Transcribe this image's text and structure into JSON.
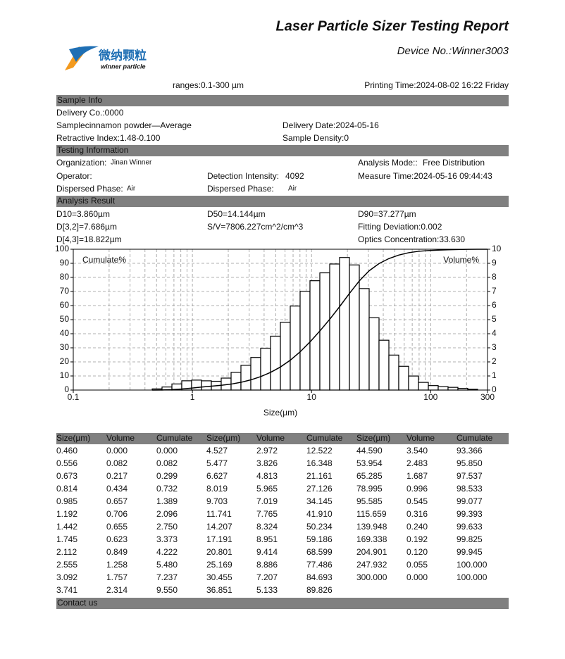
{
  "header": {
    "title": "Laser Particle Sizer Testing Report",
    "device": "Device No.:Winner3003",
    "logo_cn": "微纳颗粒",
    "logo_en": "winner particle",
    "ranges": "ranges:0.1-300 µm",
    "printing_time": "Printing Time:2024-08-02 16:22 Friday"
  },
  "sample_info": {
    "heading": "Sample Info",
    "delivery_co": "Delivery Co.:0000",
    "sample": "Samplecinnamon powder—Average",
    "delivery_date": "Delivery Date:2024-05-16",
    "retractive_index": "Retractive Index:1.48-0.100",
    "sample_density": "Sample Density:0"
  },
  "testing_info": {
    "heading": "Testing Information",
    "organization_label": "Organization:",
    "organization": "Jinan Winner",
    "analysis_mode_label": "Analysis Mode::",
    "analysis_mode": "Free Distribution",
    "operator_label": "Operator:",
    "detection_intensity_label": "Detection Intensity:",
    "detection_intensity": "4092",
    "measure_time": "Measure Time:2024-05-16 09:44:43",
    "dispersed_phase_label": "Dispersed Phase:",
    "dispersed_phase": "Air",
    "dispersed_phase_2_label": "Dispersed Phase:",
    "dispersed_phase_2": "Air"
  },
  "analysis_result": {
    "heading": "Analysis Result",
    "d10": "D10=3.860µm",
    "d50": "D50=14.144µm",
    "d90": "D90=37.277µm",
    "d32": "D[3,2]=7.686µm",
    "sv": "S/V=7806.227cm^2/cm^3",
    "fitting_deviation": "Fitting Deviation:0.002",
    "d43": "D[4,3]=18.822µm",
    "optics_concentration": "Optics Concentration:33.630"
  },
  "chart_data": {
    "type": "histogram",
    "x_label": "Size(µm)",
    "y_label": "Cumulate%",
    "y2_label": "Volume%",
    "x_log": true,
    "xlim": [
      0.1,
      300
    ],
    "xticks": [
      0.1,
      1,
      10,
      100,
      300
    ],
    "x_minor_ticks": [
      0.2,
      0.3,
      0.4,
      0.5,
      0.6,
      0.7,
      0.8,
      0.9,
      2,
      3,
      4,
      5,
      6,
      7,
      8,
      9,
      20,
      30,
      40,
      50,
      60,
      70,
      80,
      90,
      200
    ],
    "ylim": [
      0,
      100
    ],
    "yticks": [
      0,
      10,
      20,
      30,
      40,
      50,
      60,
      70,
      80,
      90,
      100
    ],
    "y2lim": [
      0,
      10
    ],
    "y2ticks": [
      0,
      1,
      2,
      3,
      4,
      5,
      6,
      7,
      8,
      9,
      10
    ],
    "grid": true,
    "bar_axis": "y2",
    "bar_color": "#ffffff",
    "line_color": "#000000",
    "bins": [
      0.46,
      0.556,
      0.673,
      0.814,
      0.985,
      1.192,
      1.442,
      1.745,
      2.112,
      2.555,
      3.092,
      3.741,
      4.527,
      5.477,
      6.627,
      8.019,
      9.703,
      11.741,
      14.207,
      17.191,
      20.801,
      25.169,
      30.455,
      36.851,
      44.59,
      53.954,
      65.285,
      78.995,
      95.585,
      115.659,
      139.948,
      169.338,
      204.901,
      247.932,
      300
    ],
    "values": [
      0.082,
      0.217,
      0.434,
      0.657,
      0.706,
      0.655,
      0.623,
      0.849,
      1.258,
      1.757,
      2.314,
      2.972,
      3.826,
      4.813,
      5.965,
      7.019,
      7.765,
      8.324,
      8.951,
      9.414,
      8.886,
      7.207,
      5.133,
      3.54,
      2.483,
      1.687,
      0.996,
      0.545,
      0.316,
      0.24,
      0.192,
      0.12,
      0.055,
      0
    ],
    "line": {
      "x": [
        0.46,
        0.556,
        0.673,
        0.814,
        0.985,
        1.192,
        1.442,
        1.745,
        2.112,
        2.555,
        3.092,
        3.741,
        4.527,
        5.477,
        6.627,
        8.019,
        9.703,
        11.741,
        14.207,
        17.191,
        20.801,
        25.169,
        30.455,
        36.851,
        44.59,
        53.954,
        65.285,
        78.995,
        95.585,
        115.659,
        139.948,
        169.338,
        204.901,
        247.932,
        300
      ],
      "values": [
        0,
        0.082,
        0.299,
        0.732,
        1.389,
        2.096,
        2.75,
        3.373,
        4.222,
        5.48,
        7.237,
        9.55,
        12.522,
        16.348,
        21.161,
        27.126,
        34.145,
        41.91,
        50.234,
        59.186,
        68.599,
        77.486,
        84.693,
        89.826,
        93.366,
        95.85,
        97.537,
        98.533,
        99.077,
        99.393,
        99.633,
        99.825,
        99.945,
        100,
        100
      ]
    }
  },
  "table": {
    "header": [
      "Size(µm)",
      "Volume",
      "Cumulate",
      "Size(µm)",
      "Volume",
      "Cumulate",
      "Size(µm)",
      "Volume",
      "Cumulate"
    ],
    "rows": [
      [
        "0.460",
        "0.000",
        "0.000",
        "4.527",
        "2.972",
        "12.522",
        "44.590",
        "3.540",
        "93.366"
      ],
      [
        "0.556",
        "0.082",
        "0.082",
        "5.477",
        "3.826",
        "16.348",
        "53.954",
        "2.483",
        "95.850"
      ],
      [
        "0.673",
        "0.217",
        "0.299",
        "6.627",
        "4.813",
        "21.161",
        "65.285",
        "1.687",
        "97.537"
      ],
      [
        "0.814",
        "0.434",
        "0.732",
        "8.019",
        "5.965",
        "27.126",
        "78.995",
        "0.996",
        "98.533"
      ],
      [
        "0.985",
        "0.657",
        "1.389",
        "9.703",
        "7.019",
        "34.145",
        "95.585",
        "0.545",
        "99.077"
      ],
      [
        "1.192",
        "0.706",
        "2.096",
        "11.741",
        "7.765",
        "41.910",
        "115.659",
        "0.316",
        "99.393"
      ],
      [
        "1.442",
        "0.655",
        "2.750",
        "14.207",
        "8.324",
        "50.234",
        "139.948",
        "0.240",
        "99.633"
      ],
      [
        "1.745",
        "0.623",
        "3.373",
        "17.191",
        "8.951",
        "59.186",
        "169.338",
        "0.192",
        "99.825"
      ],
      [
        "2.112",
        "0.849",
        "4.222",
        "20.801",
        "9.414",
        "68.599",
        "204.901",
        "0.120",
        "99.945"
      ],
      [
        "2.555",
        "1.258",
        "5.480",
        "25.169",
        "8.886",
        "77.486",
        "247.932",
        "0.055",
        "100.000"
      ],
      [
        "3.092",
        "1.757",
        "7.237",
        "30.455",
        "7.207",
        "84.693",
        "300.000",
        "0.000",
        "100.000"
      ],
      [
        "3.741",
        "2.314",
        "9.550",
        "36.851",
        "5.133",
        "89.826"
      ]
    ]
  },
  "footer": {
    "heading": "Contact us"
  }
}
